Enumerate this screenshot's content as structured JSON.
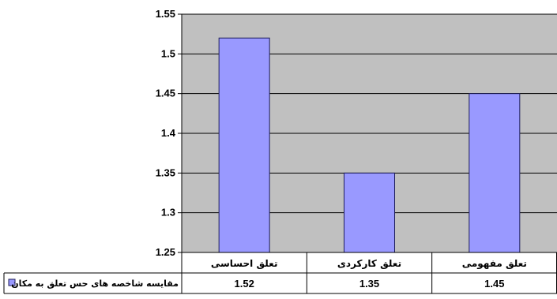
{
  "chart_data": {
    "type": "bar",
    "categories": [
      "تعلق احساسی",
      "تعلق کارکردی",
      "تعلق مفهومی"
    ],
    "series": [
      {
        "name": "مقایسه شاخصه های حس تعلق به مکان",
        "values": [
          1.52,
          1.35,
          1.45
        ],
        "value_labels": [
          "1.52",
          "1.35",
          "1.45"
        ]
      }
    ],
    "y_ticks": [
      "1.25",
      "1.3",
      "1.35",
      "1.4",
      "1.45",
      "1.5",
      "1.55"
    ],
    "ylim": [
      1.25,
      1.55
    ],
    "grid": true,
    "legend_placement": "data-table-left",
    "colors": {
      "bar_fill": "#9999ff",
      "bar_stroke": "#1e1e5a",
      "plot_background": "#c0c0c0",
      "gridline": "#000000",
      "table_line": "#000000"
    }
  }
}
